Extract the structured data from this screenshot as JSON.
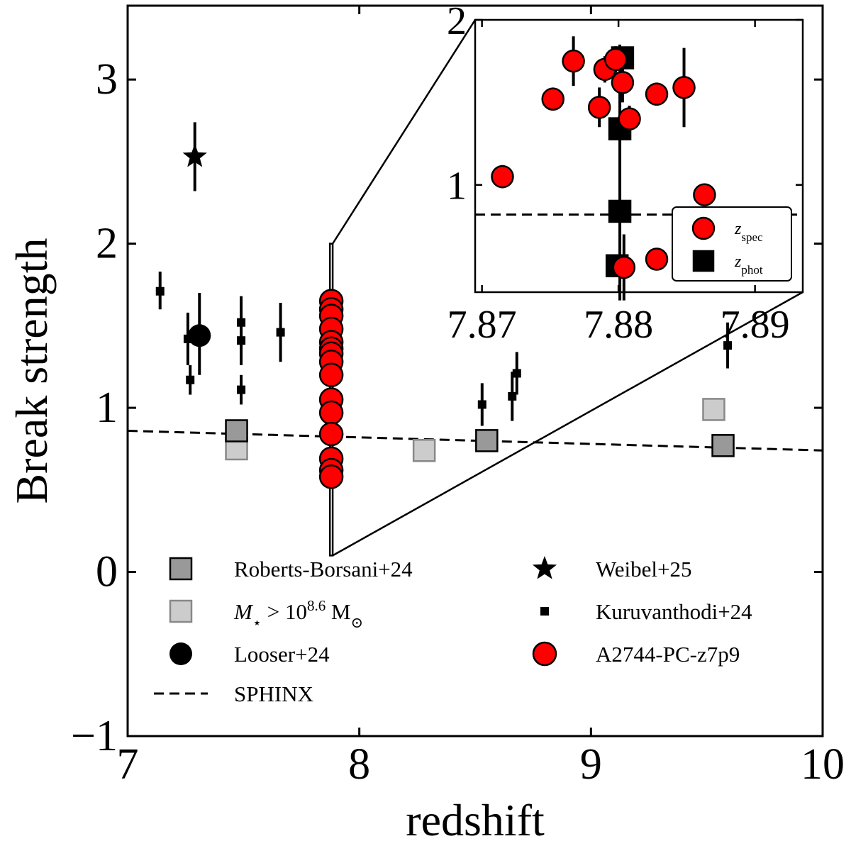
{
  "chart_data": {
    "type": "scatter",
    "xlabel": "redshift",
    "ylabel": "Break strength",
    "xlim": [
      7,
      10
    ],
    "ylim": [
      -1,
      3.45
    ],
    "x_ticks": [
      7,
      8,
      9,
      10
    ],
    "x_tick_labels": [
      "7",
      "8",
      "9",
      "10"
    ],
    "y_ticks": [
      -1,
      0,
      1,
      2,
      3
    ],
    "y_tick_labels": [
      "−1",
      "0",
      "1",
      "2",
      "3"
    ],
    "sphinx_line": {
      "name": "SPHINX",
      "x": [
        7.0,
        7.5,
        8.0,
        8.5,
        9.0,
        9.5,
        10.0
      ],
      "y": [
        0.86,
        0.84,
        0.82,
        0.8,
        0.78,
        0.76,
        0.74
      ]
    },
    "series": [
      {
        "name": "Roberts-Borsani+24",
        "marker": "square",
        "color": "#999999",
        "points": [
          {
            "x": 7.47,
            "y": 0.86
          },
          {
            "x": 8.55,
            "y": 0.8
          },
          {
            "x": 9.57,
            "y": 0.77
          }
        ]
      },
      {
        "name": "M⋆ > 10^8.6 M⊙",
        "marker": "square",
        "color": "#cccccc",
        "points": [
          {
            "x": 7.47,
            "y": 0.75
          },
          {
            "x": 8.28,
            "y": 0.74
          },
          {
            "x": 9.53,
            "y": 0.99
          }
        ]
      },
      {
        "name": "Looser+24",
        "marker": "circle",
        "color": "#000000",
        "points": [
          {
            "x": 7.31,
            "y": 1.44,
            "ylo": 1.2,
            "yhi": 1.7
          }
        ]
      },
      {
        "name": "Weibel+25",
        "marker": "star",
        "color": "#000000",
        "points": [
          {
            "x": 7.29,
            "y": 2.53,
            "ylo": 2.32,
            "yhi": 2.74
          }
        ]
      },
      {
        "name": "Kuruvanthodi+24",
        "marker": "small-square",
        "color": "#000000",
        "points": [
          {
            "x": 7.14,
            "y": 1.71,
            "ylo": 1.6,
            "yhi": 1.83
          },
          {
            "x": 7.26,
            "y": 1.42,
            "ylo": 1.26,
            "yhi": 1.58
          },
          {
            "x": 7.27,
            "y": 1.17,
            "ylo": 1.08,
            "yhi": 1.26
          },
          {
            "x": 7.49,
            "y": 1.52,
            "ylo": 1.36,
            "yhi": 1.68
          },
          {
            "x": 7.49,
            "y": 1.41,
            "ylo": 1.26,
            "yhi": 1.56
          },
          {
            "x": 7.49,
            "y": 1.11,
            "ylo": 1.02,
            "yhi": 1.2
          },
          {
            "x": 7.66,
            "y": 1.46,
            "ylo": 1.28,
            "yhi": 1.64
          },
          {
            "x": 8.53,
            "y": 1.02,
            "ylo": 0.89,
            "yhi": 1.15
          },
          {
            "x": 8.66,
            "y": 1.07,
            "ylo": 0.92,
            "yhi": 1.22
          },
          {
            "x": 8.68,
            "y": 1.21,
            "ylo": 1.08,
            "yhi": 1.34
          },
          {
            "x": 9.59,
            "y": 1.38,
            "ylo": 1.24,
            "yhi": 1.52
          }
        ]
      },
      {
        "name": "A2744-PC-z7p9",
        "marker": "circle",
        "color": "#ff0000",
        "points": [
          {
            "x": 7.879,
            "y": 1.65
          },
          {
            "x": 7.879,
            "y": 1.6
          },
          {
            "x": 7.879,
            "y": 1.56
          },
          {
            "x": 7.879,
            "y": 1.48
          },
          {
            "x": 7.879,
            "y": 1.4
          },
          {
            "x": 7.879,
            "y": 1.36
          },
          {
            "x": 7.879,
            "y": 1.33
          },
          {
            "x": 7.879,
            "y": 1.28
          },
          {
            "x": 7.879,
            "y": 1.2
          },
          {
            "x": 7.879,
            "y": 1.05
          },
          {
            "x": 7.879,
            "y": 0.97
          },
          {
            "x": 7.879,
            "y": 0.84
          },
          {
            "x": 7.879,
            "y": 0.69
          },
          {
            "x": 7.879,
            "y": 0.62
          },
          {
            "x": 7.879,
            "y": 0.58
          }
        ]
      }
    ],
    "zoom_box": {
      "x": [
        7.873,
        7.885
      ],
      "y": [
        0.1,
        2.0
      ]
    },
    "inset": {
      "xlim": [
        7.8695,
        7.8935
      ],
      "ylim": [
        0.35,
        2.0
      ],
      "x_ticks": [
        7.87,
        7.88,
        7.89
      ],
      "x_tick_labels": [
        "7.87",
        "7.88",
        "7.89"
      ],
      "y_ticks": [
        1,
        2
      ],
      "y_tick_labels": [
        "1",
        "2"
      ],
      "sphinx_y": 0.82,
      "legend": [
        "z_spec",
        "z_phot"
      ],
      "zspec": [
        {
          "x": 7.8715,
          "y": 1.05,
          "ylo": 0.98,
          "yhi": 1.12
        },
        {
          "x": 7.8752,
          "y": 1.52,
          "ylo": 1.45,
          "yhi": 1.59
        },
        {
          "x": 7.8767,
          "y": 1.75,
          "ylo": 1.6,
          "yhi": 1.9
        },
        {
          "x": 7.8786,
          "y": 1.47,
          "ylo": 1.35,
          "yhi": 1.59
        },
        {
          "x": 7.879,
          "y": 1.7,
          "ylo": 1.62,
          "yhi": 1.78
        },
        {
          "x": 7.8798,
          "y": 1.76,
          "ylo": 1.68,
          "yhi": 1.84
        },
        {
          "x": 7.8803,
          "y": 1.62,
          "ylo": 1.5,
          "yhi": 1.74
        },
        {
          "x": 7.8808,
          "y": 1.4,
          "ylo": 1.32,
          "yhi": 1.48
        },
        {
          "x": 7.8804,
          "y": 0.5,
          "ylo": 0.3,
          "yhi": 0.7
        },
        {
          "x": 7.8828,
          "y": 0.55,
          "ylo": 0.5,
          "yhi": 0.6
        },
        {
          "x": 7.8828,
          "y": 1.55,
          "ylo": 1.48,
          "yhi": 1.62
        },
        {
          "x": 7.8848,
          "y": 1.59,
          "ylo": 1.35,
          "yhi": 1.83
        },
        {
          "x": 7.8863,
          "y": 0.94,
          "ylo": 0.9,
          "yhi": 0.98
        }
      ],
      "zphot": [
        {
          "x": 7.8803,
          "y": 1.77
        },
        {
          "x": 7.8801,
          "y": 1.34
        },
        {
          "x": 7.8801,
          "y": 0.84
        },
        {
          "x": 7.8799,
          "y": 0.51
        }
      ]
    },
    "legend_placement": "lower-center"
  }
}
